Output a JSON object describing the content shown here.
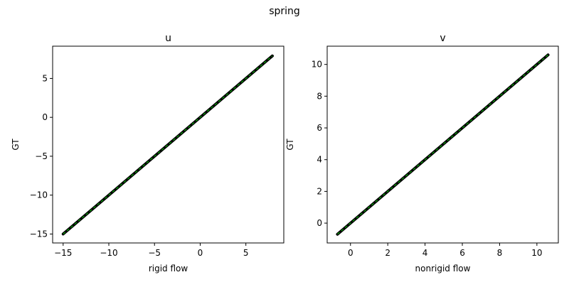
{
  "figure": {
    "title": "spring"
  },
  "chart_data": [
    {
      "type": "scatter",
      "title": "u",
      "xlabel": "rigid flow",
      "ylabel": "GT",
      "xlim": [
        -16.15,
        9.15
      ],
      "ylim": [
        -16.15,
        9.15
      ],
      "xticks": [
        -15,
        -10,
        -5,
        0,
        5
      ],
      "yticks": [
        -15,
        -10,
        -5,
        0,
        5
      ],
      "x": [
        -15,
        7.9
      ],
      "y": [
        -15,
        7.9
      ],
      "series": [
        {
          "values_x": [
            -15,
            7.9
          ],
          "values_y": [
            -15,
            7.9
          ],
          "marker_color": "#000000",
          "line_color": "#00aa00"
        }
      ],
      "grid": false,
      "legend": "none"
    },
    {
      "type": "scatter",
      "title": "v",
      "xlabel": "nonrigid flow",
      "ylabel": "GT",
      "xlim": [
        -1.25,
        11.15
      ],
      "ylim": [
        -1.25,
        11.15
      ],
      "xticks": [
        0,
        2,
        4,
        6,
        8,
        10
      ],
      "yticks": [
        0,
        2,
        4,
        6,
        8,
        10
      ],
      "x": [
        -0.7,
        10.6
      ],
      "y": [
        -0.7,
        10.6
      ],
      "series": [
        {
          "values_x": [
            -0.7,
            10.6
          ],
          "values_y": [
            -0.7,
            10.6
          ],
          "marker_color": "#000000",
          "line_color": "#00aa00"
        }
      ],
      "grid": false,
      "legend": "none"
    }
  ]
}
